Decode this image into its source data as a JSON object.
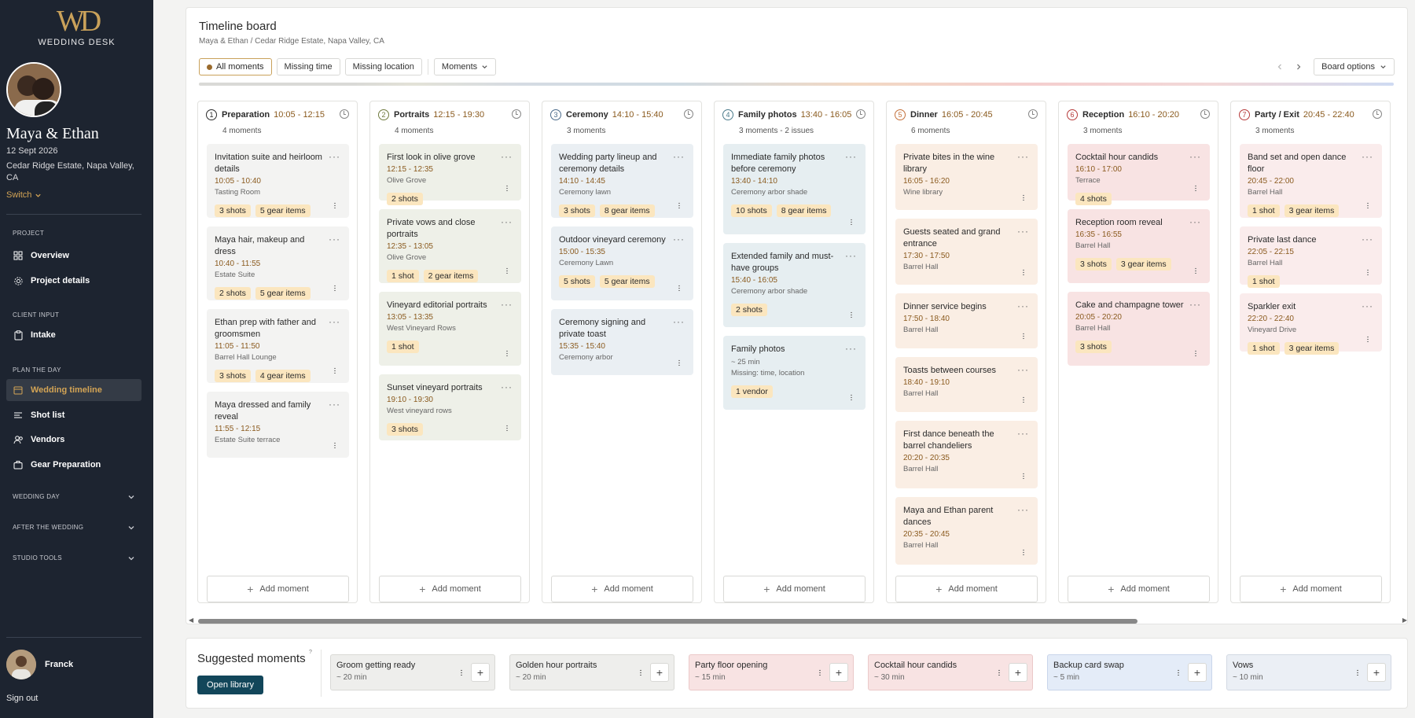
{
  "brand": {
    "monogram": "WD",
    "name": "WEDDING DESK"
  },
  "project": {
    "couple": "Maya & Ethan",
    "date": "12 Sept 2026",
    "venue": "Cedar Ridge Estate, Napa Valley, CA",
    "switch_label": "Switch"
  },
  "nav": {
    "section_project": "PROJECT",
    "overview": "Overview",
    "project_details": "Project details",
    "section_client": "CLIENT INPUT",
    "intake": "Intake",
    "section_plan": "PLAN THE DAY",
    "wedding_timeline": "Wedding timeline",
    "shot_list": "Shot list",
    "vendors": "Vendors",
    "gear": "Gear Preparation",
    "wedding_day": "WEDDING DAY",
    "after": "AFTER THE WEDDING",
    "studio": "STUDIO TOOLS"
  },
  "user": {
    "name": "Franck",
    "signout": "Sign out"
  },
  "board": {
    "title": "Timeline board",
    "subtitle": "Maya & Ethan / Cedar Ridge Estate, Napa Valley, CA",
    "filters": [
      "All moments",
      "Missing time",
      "Missing location"
    ],
    "moments_dropdown": "Moments",
    "board_options": "Board options",
    "add_moment": "Add moment"
  },
  "colors": {
    "accent": "#c9a15a",
    "sidebar": "#1d2430",
    "primary_button": "#12465a"
  },
  "columns": [
    {
      "num": "1",
      "name": "Preparation",
      "time": "10:05 - 12:15",
      "count": "4 moments",
      "color": "#2b2b2b",
      "bg": "#f3f3f2",
      "timecolor": "#8a5a1e",
      "cards": [
        {
          "title": "Invitation suite and heirloom details",
          "time": "10:05  - 10:40",
          "loc": "Tasting Room",
          "tags": [
            "3 shots",
            "5 gear items"
          ]
        },
        {
          "title": "Maya hair, makeup and dress",
          "time": "10:40  - 11:55",
          "loc": "Estate Suite",
          "tags": [
            "2 shots",
            "5 gear items"
          ]
        },
        {
          "title": "Ethan prep with father and groomsmen",
          "time": "11:05  - 11:50",
          "loc": "Barrel Hall Lounge",
          "tags": [
            "3 shots",
            "4 gear items"
          ]
        },
        {
          "title": "Maya dressed and family reveal",
          "time": "11:55  - 12:15",
          "loc": "Estate Suite terrace",
          "tags": []
        }
      ]
    },
    {
      "num": "2",
      "name": "Portraits",
      "time": "12:15 - 19:30",
      "count": "4 moments",
      "color": "#6f7a3e",
      "bg": "#eef0e8",
      "timecolor": "#8a5a1e",
      "cards": [
        {
          "title": "First look in olive grove",
          "time": "12:15  - 12:35",
          "loc": "Olive Grove",
          "tags": [
            "2 shots"
          ]
        },
        {
          "title": "Private vows and close portraits",
          "time": "12:35  - 13:05",
          "loc": "Olive Grove",
          "tags": [
            "1 shot",
            "2 gear items"
          ]
        },
        {
          "title": "Vineyard editorial portraits",
          "time": "13:05  - 13:35",
          "loc": "West Vineyard Rows",
          "tags": [
            "1 shot"
          ]
        },
        {
          "title": "Sunset vineyard portraits",
          "time": "19:10  - 19:30",
          "loc": "West vineyard rows",
          "tags": [
            "3 shots"
          ]
        }
      ]
    },
    {
      "num": "3",
      "name": "Ceremony",
      "time": "14:10 - 15:40",
      "count": "3 moments",
      "color": "#4a6a8a",
      "bg": "#eaeff3",
      "timecolor": "#8a5a1e",
      "cards": [
        {
          "title": "Wedding party lineup and ceremony details",
          "time": "14:10  - 14:45",
          "loc": "Ceremony lawn",
          "tags": [
            "3 shots",
            "8 gear items"
          ]
        },
        {
          "title": "Outdoor vineyard ceremony",
          "time": "15:00  - 15:35",
          "loc": "Ceremony Lawn",
          "tags": [
            "5 shots",
            "5 gear items"
          ]
        },
        {
          "title": "Ceremony signing and private toast",
          "time": "15:35  - 15:40",
          "loc": "Ceremony arbor",
          "tags": []
        }
      ]
    },
    {
      "num": "4",
      "name": "Family photos",
      "time": "13:40 - 16:05",
      "count": "3 moments - 2 issues",
      "color": "#4a7a8a",
      "bg": "#e6eef1",
      "timecolor": "#8a5a1e",
      "cards": [
        {
          "title": "Immediate family photos before ceremony",
          "time": "13:40  - 14:10",
          "loc": "Ceremony arbor shade",
          "tags": [
            "10 shots",
            "8 gear items"
          ]
        },
        {
          "title": "Extended family and must-have groups",
          "time": "15:40  - 16:05",
          "loc": "Ceremony arbor shade",
          "tags": [
            "2 shots"
          ]
        },
        {
          "title": "Family photos",
          "time": "",
          "dur": "~ 25 min",
          "missing": "Missing: time, location",
          "loc": "",
          "tags": [
            "1 vendor"
          ]
        }
      ]
    },
    {
      "num": "5",
      "name": "Dinner",
      "time": "16:05 - 20:45",
      "count": "6 moments",
      "color": "#c4703a",
      "bg": "#faeee4",
      "timecolor": "#8a5a1e",
      "cards": [
        {
          "title": "Private bites in the wine library",
          "time": "16:05  - 16:20",
          "loc": "Wine library",
          "tags": []
        },
        {
          "title": "Guests seated and grand entrance",
          "time": "17:30  - 17:50",
          "loc": "Barrel Hall",
          "tags": []
        },
        {
          "title": "Dinner service begins",
          "time": "17:50  - 18:40",
          "loc": "Barrel Hall",
          "tags": []
        },
        {
          "title": "Toasts between courses",
          "time": "18:40  - 19:10",
          "loc": "Barrel Hall",
          "tags": []
        },
        {
          "title": "First dance beneath the barrel chandeliers",
          "time": "20:20  - 20:35",
          "loc": "Barrel Hall",
          "tags": []
        },
        {
          "title": "Maya and Ethan parent dances",
          "time": "20:35  - 20:45",
          "loc": "Barrel Hall",
          "tags": []
        }
      ]
    },
    {
      "num": "6",
      "name": "Reception",
      "time": "16:10 - 20:20",
      "count": "3 moments",
      "color": "#b63a3a",
      "bg": "#f8e3e3",
      "timecolor": "#8a5a1e",
      "cards": [
        {
          "title": "Cocktail hour candids",
          "time": "16:10  - 17:00",
          "loc": "Terrace",
          "tags": [
            "4 shots"
          ]
        },
        {
          "title": "Reception room reveal",
          "time": "16:35  - 16:55",
          "loc": "Barrel Hall",
          "tags": [
            "3 shots",
            "3 gear items"
          ]
        },
        {
          "title": "Cake and champagne tower",
          "time": "20:05  - 20:20",
          "loc": "Barrel Hall",
          "tags": [
            "3 shots"
          ]
        }
      ]
    },
    {
      "num": "7",
      "name": "Party / Exit",
      "time": "20:45 - 22:40",
      "count": "3 moments",
      "color": "#b63a3a",
      "bg": "#faecec",
      "timecolor": "#8a5a1e",
      "cards": [
        {
          "title": "Band set and open dance floor",
          "time": "20:45  - 22:00",
          "loc": "Barrel Hall",
          "tags": [
            "1 shot",
            "3 gear items"
          ]
        },
        {
          "title": "Private last dance",
          "time": "22:05  - 22:15",
          "loc": "Barrel Hall",
          "tags": [
            "1 shot"
          ]
        },
        {
          "title": "Sparkler exit",
          "time": "22:20  - 22:40",
          "loc": "Vineyard Drive",
          "tags": [
            "1 shot",
            "3 gear items"
          ]
        }
      ]
    }
  ],
  "suggested": {
    "title": "Suggested moments",
    "open_library": "Open library",
    "items": [
      {
        "name": "Groom getting ready",
        "dur": "~ 20 min",
        "bg": "#eeeeec",
        "border": "#d9d9d6"
      },
      {
        "name": "Golden hour portraits",
        "dur": "~ 20 min",
        "bg": "#eeeeec",
        "border": "#d9d9d6"
      },
      {
        "name": "Party floor opening",
        "dur": "~ 15 min",
        "bg": "#f8e3e3",
        "border": "#ebc9c9"
      },
      {
        "name": "Cocktail hour candids",
        "dur": "~ 30 min",
        "bg": "#f8e3e3",
        "border": "#ebc9c9"
      },
      {
        "name": "Backup card swap",
        "dur": "~ 5 min",
        "bg": "#e4ecf8",
        "border": "#c9d5ea"
      },
      {
        "name": "Vows",
        "dur": "~ 10 min",
        "bg": "#ebeff5",
        "border": "#d3d9e3"
      }
    ]
  }
}
